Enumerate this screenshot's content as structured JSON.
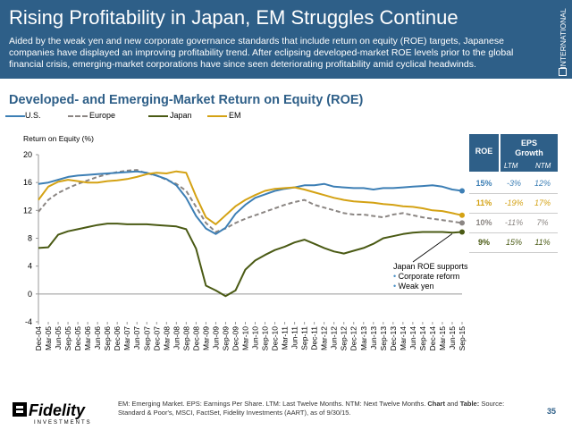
{
  "header": {
    "title": "Rising Profitability in Japan, EM Struggles Continue",
    "subtitle": "Aided by the weak yen and new corporate governance standards that include return on equity (ROE) targets, Japanese companies have displayed an improving profitability trend. After eclipsing developed-market ROE levels prior to the global financial crisis, emerging-market corporations have since seen deteriorating profitability amid cyclical headwinds.",
    "side_label": "INTERNATIONAL"
  },
  "colors": {
    "us": "#3d7fb5",
    "europe": "#8b8683",
    "japan": "#4a5a14",
    "em": "#d4a214",
    "header": "#2e5f88"
  },
  "chart_data": {
    "type": "line",
    "title": "Developed- and Emerging-Market Return on Equity (ROE)",
    "ylabel": "Return on Equity (%)",
    "ylim": [
      -4,
      20
    ],
    "yticks": [
      -4,
      0,
      4,
      8,
      12,
      16,
      20
    ],
    "x": [
      "Dec-04",
      "Mar-05",
      "Jun-05",
      "Sep-05",
      "Dec-05",
      "Mar-06",
      "Jun-06",
      "Sep-06",
      "Dec-06",
      "Mar-07",
      "Jun-07",
      "Sep-07",
      "Dec-07",
      "Mar-08",
      "Jun-08",
      "Sep-08",
      "Dec-08",
      "Mar-09",
      "Jun-09",
      "Sep-09",
      "Dec-09",
      "Mar-10",
      "Jun-10",
      "Sep-10",
      "Dec-10",
      "Mar-11",
      "Jun-11",
      "Sep-11",
      "Dec-11",
      "Mar-12",
      "Jun-12",
      "Sep-12",
      "Dec-12",
      "Mar-13",
      "Jun-13",
      "Sep-13",
      "Dec-13",
      "Mar-14",
      "Jun-14",
      "Sep-14",
      "Dec-14",
      "Mar-15",
      "Jun-15",
      "Sep-15"
    ],
    "series": [
      {
        "name": "U.S.",
        "style": "solid",
        "values": [
          15.8,
          16.0,
          16.4,
          16.8,
          17.0,
          17.1,
          17.2,
          17.3,
          17.4,
          17.5,
          17.6,
          17.4,
          17.0,
          16.5,
          15.6,
          13.8,
          11.2,
          9.4,
          8.6,
          9.5,
          11.5,
          12.8,
          13.8,
          14.3,
          14.8,
          15.1,
          15.3,
          15.6,
          15.6,
          15.8,
          15.4,
          15.3,
          15.2,
          15.2,
          15.0,
          15.2,
          15.2,
          15.3,
          15.4,
          15.5,
          15.6,
          15.4,
          15.0,
          14.8
        ]
      },
      {
        "name": "Europe",
        "style": "dashed",
        "values": [
          11.8,
          13.5,
          14.5,
          15.2,
          15.8,
          16.3,
          16.8,
          17.2,
          17.5,
          17.7,
          17.8,
          17.3,
          17.0,
          16.4,
          15.8,
          14.8,
          12.5,
          10.2,
          8.9,
          9.4,
          10.2,
          10.8,
          11.3,
          11.8,
          12.3,
          12.8,
          13.2,
          13.5,
          12.8,
          12.4,
          12.0,
          11.6,
          11.4,
          11.4,
          11.2,
          11.0,
          11.4,
          11.6,
          11.3,
          11.0,
          10.8,
          10.6,
          10.4,
          10.2
        ]
      },
      {
        "name": "Japan",
        "style": "solid",
        "values": [
          6.6,
          6.7,
          8.5,
          9.0,
          9.3,
          9.6,
          9.9,
          10.1,
          10.1,
          10.0,
          10.0,
          10.0,
          9.9,
          9.8,
          9.7,
          9.3,
          6.5,
          1.2,
          0.5,
          -0.3,
          0.5,
          3.5,
          4.8,
          5.6,
          6.3,
          6.8,
          7.4,
          7.8,
          7.2,
          6.6,
          6.1,
          5.8,
          6.2,
          6.6,
          7.2,
          8.0,
          8.3,
          8.6,
          8.8,
          8.9,
          8.9,
          8.9,
          8.8,
          8.9
        ]
      },
      {
        "name": "EM",
        "style": "solid",
        "values": [
          13.5,
          15.4,
          16.1,
          16.4,
          16.2,
          16.0,
          16.0,
          16.2,
          16.3,
          16.5,
          16.8,
          17.2,
          17.4,
          17.3,
          17.6,
          17.4,
          14.0,
          11.0,
          10.0,
          11.3,
          12.6,
          13.5,
          14.2,
          14.8,
          15.1,
          15.2,
          15.3,
          15.0,
          14.6,
          14.2,
          13.8,
          13.5,
          13.3,
          13.2,
          13.1,
          12.9,
          12.8,
          12.6,
          12.5,
          12.3,
          12.0,
          11.9,
          11.6,
          11.3
        ]
      }
    ],
    "legend_position": "top-left",
    "grid": false
  },
  "table": {
    "header_roe": "ROE",
    "header_eps": "EPS Growth",
    "sub_ltm": "LTM",
    "sub_ntm": "NTM",
    "rows": [
      {
        "roe": "15%",
        "ltm": "-3%",
        "ntm": "12%",
        "color": "#3d7fb5"
      },
      {
        "roe": "11%",
        "ltm": "-19%",
        "ntm": "17%",
        "color": "#d4a214"
      },
      {
        "roe": "10%",
        "ltm": "-11%",
        "ntm": "7%",
        "color": "#8b8683"
      },
      {
        "roe": "9%",
        "ltm": "15%",
        "ntm": "11%",
        "color": "#4a5a14"
      }
    ]
  },
  "annotation": {
    "line1": "Japan ROE supports",
    "bullet1": "Corporate reform",
    "bullet2": "Weak yen"
  },
  "footer": {
    "note_plain": "EM: Emerging Market. EPS: Earnings Per Share. LTM: Last Twelve Months. NTM: Next Twelve Months.",
    "note_bold": "Chart",
    "note_and": "and",
    "note_bold2": "Table:",
    "note_source": "Source: Standard & Poor's, MSCI, FactSet, Fidelity Investments (AART), as of 9/30/15.",
    "logo_text": "Fidelity",
    "logo_sub": "INVESTMENTS",
    "page_number": "35"
  }
}
